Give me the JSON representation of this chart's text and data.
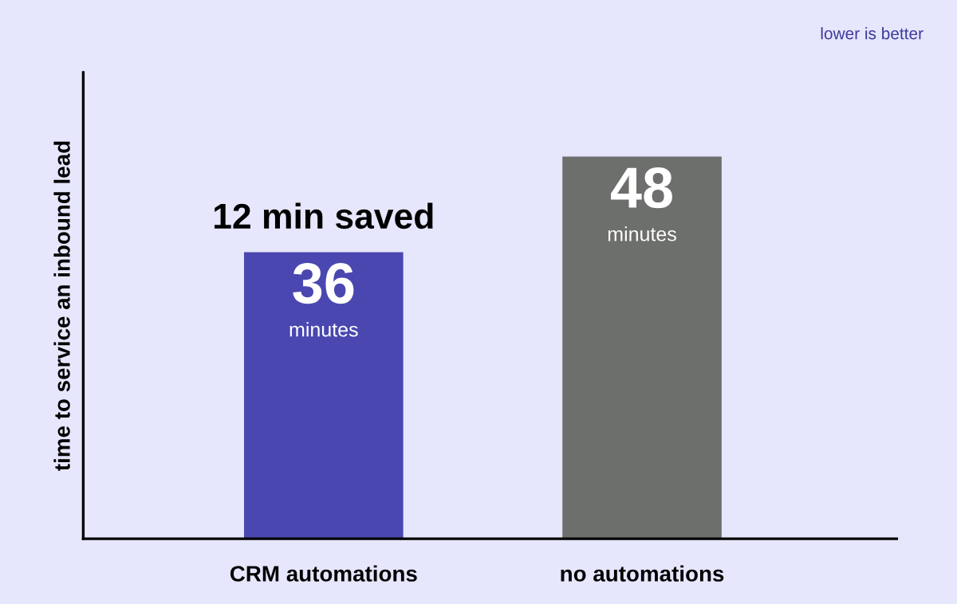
{
  "chart_data": {
    "type": "bar",
    "ylabel": "time to service an inbound lead",
    "categories": [
      "CRM automations",
      "no automations"
    ],
    "values": [
      36,
      48
    ],
    "colors": [
      "#4a47b0",
      "#6d6f6c"
    ],
    "value_labels": [
      "36\nminutes",
      "48\nminutes"
    ],
    "relative": false,
    "grid": false,
    "legend": false,
    "annotations": [
      {
        "text": "12 min saved",
        "x": "CRM automations",
        "y": 36
      },
      "lower is better"
    ]
  }
}
